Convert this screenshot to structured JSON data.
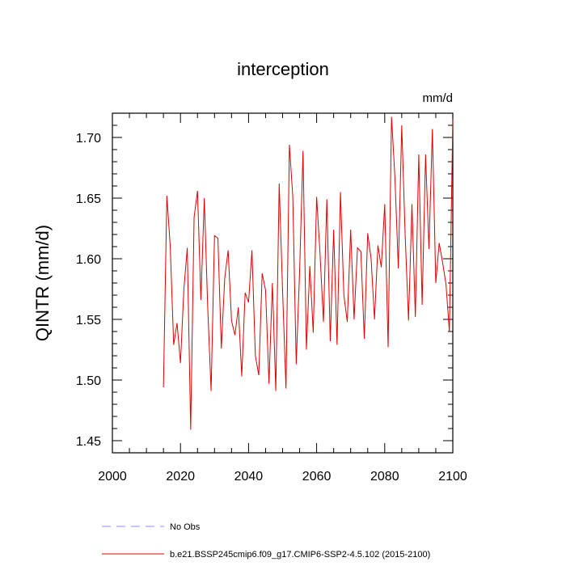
{
  "chart_data": {
    "type": "line",
    "title": "interception",
    "units_label": "mm/d",
    "ylabel": "QINTR  (mm/d)",
    "xlim": [
      2000,
      2100
    ],
    "ylim": [
      1.44,
      1.72
    ],
    "x_ticks": [
      2000,
      2020,
      2040,
      2060,
      2080,
      2100
    ],
    "y_ticks": [
      1.45,
      1.5,
      1.55,
      1.6,
      1.65,
      1.7
    ],
    "y_tick_labels": [
      "1.45",
      "1.50",
      "1.55",
      "1.60",
      "1.65",
      "1.70"
    ],
    "series": [
      {
        "name": "b.e21.BSSP245cmip6.f09_g17.CMIP6-SSP2-4.5.102 (2015-2100)",
        "color": "#e00000",
        "x": [
          2015,
          2016,
          2017,
          2018,
          2019,
          2020,
          2021,
          2022,
          2023,
          2024,
          2025,
          2026,
          2027,
          2028,
          2029,
          2030,
          2031,
          2032,
          2033,
          2034,
          2035,
          2036,
          2037,
          2038,
          2039,
          2040,
          2041,
          2042,
          2043,
          2044,
          2045,
          2046,
          2047,
          2048,
          2049,
          2050,
          2051,
          2052,
          2053,
          2054,
          2055,
          2056,
          2057,
          2058,
          2059,
          2060,
          2061,
          2062,
          2063,
          2064,
          2065,
          2066,
          2067,
          2068,
          2069,
          2070,
          2071,
          2072,
          2073,
          2074,
          2075,
          2076,
          2077,
          2078,
          2079,
          2080,
          2081,
          2082,
          2083,
          2084,
          2085,
          2086,
          2087,
          2088,
          2089,
          2090,
          2091,
          2092,
          2093,
          2094,
          2095,
          2096,
          2097,
          2098,
          2099,
          2100
        ],
        "values": [
          1.494,
          1.652,
          1.61,
          1.529,
          1.547,
          1.514,
          1.575,
          1.609,
          1.459,
          1.634,
          1.656,
          1.566,
          1.65,
          1.56,
          1.491,
          1.619,
          1.617,
          1.526,
          1.584,
          1.607,
          1.549,
          1.537,
          1.56,
          1.503,
          1.572,
          1.564,
          1.607,
          1.52,
          1.504,
          1.588,
          1.574,
          1.497,
          1.58,
          1.491,
          1.662,
          1.573,
          1.493,
          1.694,
          1.651,
          1.513,
          1.59,
          1.689,
          1.525,
          1.594,
          1.539,
          1.651,
          1.604,
          1.548,
          1.649,
          1.532,
          1.624,
          1.529,
          1.655,
          1.57,
          1.548,
          1.624,
          1.55,
          1.609,
          1.606,
          1.534,
          1.621,
          1.6,
          1.55,
          1.611,
          1.593,
          1.645,
          1.527,
          1.717,
          1.667,
          1.592,
          1.71,
          1.62,
          1.549,
          1.645,
          1.552,
          1.686,
          1.562,
          1.686,
          1.608,
          1.707,
          1.58,
          1.613,
          1.597,
          1.579,
          1.54,
          1.715
        ]
      },
      {
        "name": "No Obs",
        "color": "#8a8aff",
        "dashed": true,
        "x": [],
        "values": []
      }
    ],
    "legend": "bottom-left",
    "grid": false
  }
}
